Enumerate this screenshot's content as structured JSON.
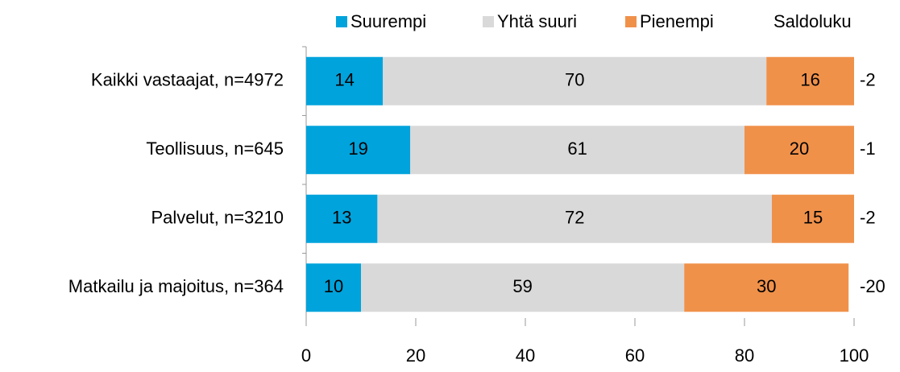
{
  "chart_data": {
    "type": "stacked-bar-horizontal",
    "categories": [
      "Kaikki vastaajat, n=4972",
      "Teollisuus, n=645",
      "Palvelut, n=3210",
      "Matkailu ja majoitus, n=364"
    ],
    "series": [
      {
        "name": "Suurempi",
        "color": "#00a3dc",
        "values": [
          14,
          19,
          13,
          10
        ]
      },
      {
        "name": "Yhtä suuri",
        "color": "#d9d9d9",
        "values": [
          70,
          61,
          72,
          59
        ]
      },
      {
        "name": "Pienempi",
        "color": "#f0914a",
        "values": [
          16,
          20,
          15,
          30
        ]
      }
    ],
    "balance": {
      "name": "Saldoluku",
      "values": [
        -2,
        -1,
        -2,
        -20
      ]
    },
    "xlim": [
      0,
      100
    ],
    "xticks": [
      0,
      20,
      40,
      60,
      80,
      100
    ],
    "legend": "top"
  }
}
